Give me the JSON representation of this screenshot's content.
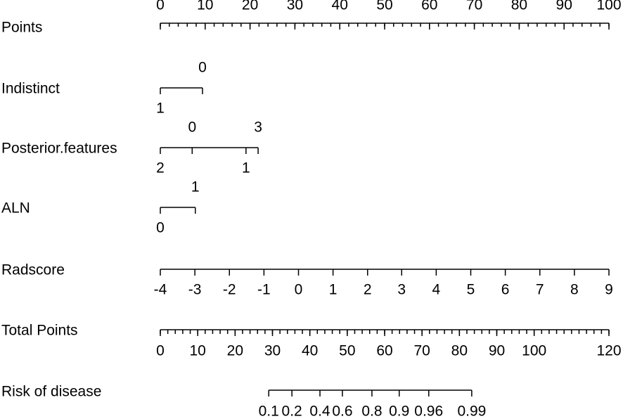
{
  "chart_data": {
    "type": "nomogram",
    "points_axis": {
      "label": "Points",
      "lim": [
        0,
        100
      ],
      "ticks": [
        0,
        10,
        20,
        30,
        40,
        50,
        60,
        70,
        80,
        90,
        100
      ],
      "minor_step": 2
    },
    "variables": [
      {
        "label": "Indistinct",
        "levels": [
          {
            "value": 1,
            "points": 0,
            "side": "below"
          },
          {
            "value": 0,
            "points": 9.4,
            "side": "above"
          }
        ]
      },
      {
        "label": "Posterior.features",
        "levels": [
          {
            "value": 2,
            "points": 0,
            "side": "below"
          },
          {
            "value": 0,
            "points": 7.1,
            "side": "above"
          },
          {
            "value": 1,
            "points": 19.1,
            "side": "below"
          },
          {
            "value": 3,
            "points": 21.8,
            "side": "above"
          }
        ]
      },
      {
        "label": "ALN",
        "levels": [
          {
            "value": 0,
            "points": 0,
            "side": "below"
          },
          {
            "value": 1,
            "points": 7.8,
            "side": "above"
          }
        ]
      },
      {
        "label": "Radscore",
        "levels": [
          {
            "value": -4,
            "points": 0,
            "side": "below"
          },
          {
            "value": -3,
            "points": 7.7,
            "side": "below"
          },
          {
            "value": -2,
            "points": 15.4,
            "side": "below"
          },
          {
            "value": -1,
            "points": 23.1,
            "side": "below"
          },
          {
            "value": 0,
            "points": 30.8,
            "side": "below"
          },
          {
            "value": 1,
            "points": 38.5,
            "side": "below"
          },
          {
            "value": 2,
            "points": 46.2,
            "side": "below"
          },
          {
            "value": 3,
            "points": 53.8,
            "side": "below"
          },
          {
            "value": 4,
            "points": 61.5,
            "side": "below"
          },
          {
            "value": 5,
            "points": 69.2,
            "side": "below"
          },
          {
            "value": 6,
            "points": 76.9,
            "side": "below"
          },
          {
            "value": 7,
            "points": 84.6,
            "side": "below"
          },
          {
            "value": 8,
            "points": 92.3,
            "side": "below"
          },
          {
            "value": 9,
            "points": 100,
            "side": "below"
          }
        ]
      }
    ],
    "total_axis": {
      "label": "Total Points",
      "lim": [
        0,
        120
      ],
      "ticks": [
        0,
        10,
        20,
        30,
        40,
        50,
        60,
        70,
        80,
        90,
        100,
        120
      ],
      "minor_step": 2
    },
    "risk_axis": {
      "label": "Risk of disease",
      "ticks": [
        {
          "value": 0.1,
          "total": 29.0
        },
        {
          "value": 0.2,
          "total": 35.2
        },
        {
          "value": 0.4,
          "total": 42.7
        },
        {
          "value": 0.6,
          "total": 48.7
        },
        {
          "value": 0.8,
          "total": 56.6
        },
        {
          "value": 0.9,
          "total": 63.9
        },
        {
          "value": 0.96,
          "total": 71.8
        },
        {
          "value": 0.99,
          "total": 83.3
        }
      ]
    }
  }
}
